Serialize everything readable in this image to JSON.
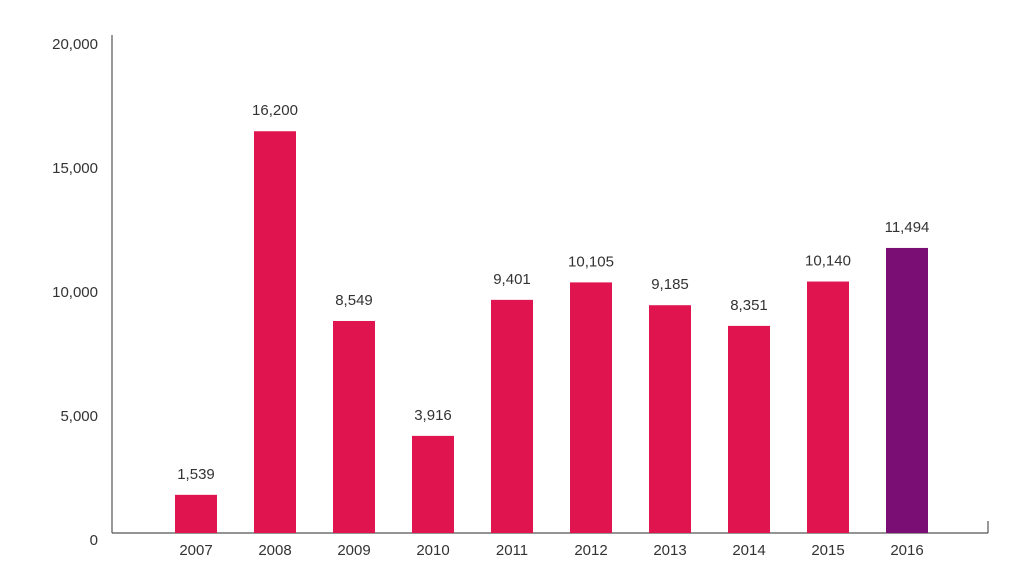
{
  "chart_data": {
    "type": "bar",
    "categories": [
      "2007",
      "2008",
      "2009",
      "2010",
      "2011",
      "2012",
      "2013",
      "2014",
      "2015",
      "2016"
    ],
    "values": [
      1539,
      16200,
      8549,
      3916,
      9401,
      10105,
      9185,
      8351,
      10140,
      11494
    ],
    "value_labels": [
      "1,539",
      "16,200",
      "8,549",
      "3,916",
      "9,401",
      "10,105",
      "9,185",
      "8,351",
      "10,140",
      "11,494"
    ],
    "colors": [
      "#e0144f",
      "#e0144f",
      "#e0144f",
      "#e0144f",
      "#e0144f",
      "#e0144f",
      "#e0144f",
      "#e0144f",
      "#e0144f",
      "#7a0e75"
    ],
    "ylim": [
      0,
      20000
    ],
    "yticks": [
      0,
      {
        "value": 5000,
        "label": "5,000"
      },
      {
        "value": 10000,
        "label": "10,000"
      },
      {
        "value": 15000,
        "label": "15,000"
      },
      {
        "value": 20000,
        "label": "20,000"
      }
    ],
    "grid": false
  }
}
